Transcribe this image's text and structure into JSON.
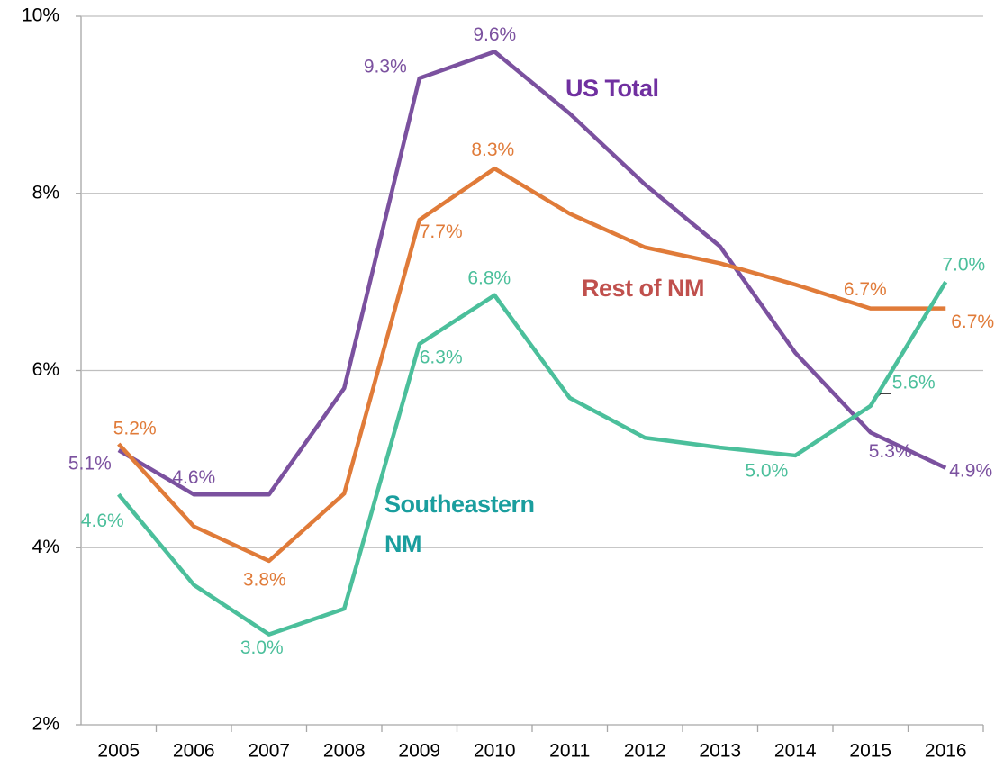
{
  "chart_data": {
    "type": "line",
    "categories": [
      "2005",
      "2006",
      "2007",
      "2008",
      "2009",
      "2010",
      "2011",
      "2012",
      "2013",
      "2014",
      "2015",
      "2016"
    ],
    "series": [
      {
        "name": "US Total",
        "color": "#7b519f",
        "label_color": "#7030a0",
        "values": [
          5.1,
          4.6,
          4.6,
          5.8,
          9.3,
          9.6,
          8.9,
          8.1,
          7.4,
          6.2,
          5.3,
          4.9
        ],
        "value_labels": [
          "5.1%",
          "4.6%",
          null,
          null,
          "9.3%",
          "9.6%",
          null,
          null,
          null,
          null,
          "5.3%",
          "4.9%"
        ]
      },
      {
        "name": "Rest of NM",
        "color": "#e07b39",
        "label_color": "#c0504d",
        "values": [
          5.17,
          4.24,
          3.85,
          4.61,
          7.7,
          8.28,
          7.77,
          7.39,
          7.21,
          6.97,
          6.7,
          6.7
        ],
        "value_labels": [
          "5.2%",
          null,
          "3.8%",
          null,
          "7.7%",
          "8.3%",
          null,
          null,
          null,
          null,
          "6.7%",
          "6.7%"
        ]
      },
      {
        "name": "Southeastern NM",
        "color": "#4bbf9b",
        "label_color": "#1a9e9e",
        "values": [
          4.6,
          3.58,
          3.02,
          3.31,
          6.3,
          6.85,
          5.69,
          5.24,
          5.13,
          5.04,
          5.6,
          7.0
        ],
        "value_labels": [
          "4.6%",
          null,
          "3.0%",
          null,
          "6.3%",
          "6.8%",
          null,
          null,
          null,
          "5.0%",
          "5.6%",
          "7.0%"
        ]
      }
    ],
    "ylim": [
      2,
      10
    ],
    "yticks": [
      {
        "value": 2,
        "label": "2%"
      },
      {
        "value": 4,
        "label": "4%"
      },
      {
        "value": 6,
        "label": "6%"
      },
      {
        "value": 8,
        "label": "8%"
      },
      {
        "value": 10,
        "label": "10%"
      }
    ],
    "grid": true
  }
}
